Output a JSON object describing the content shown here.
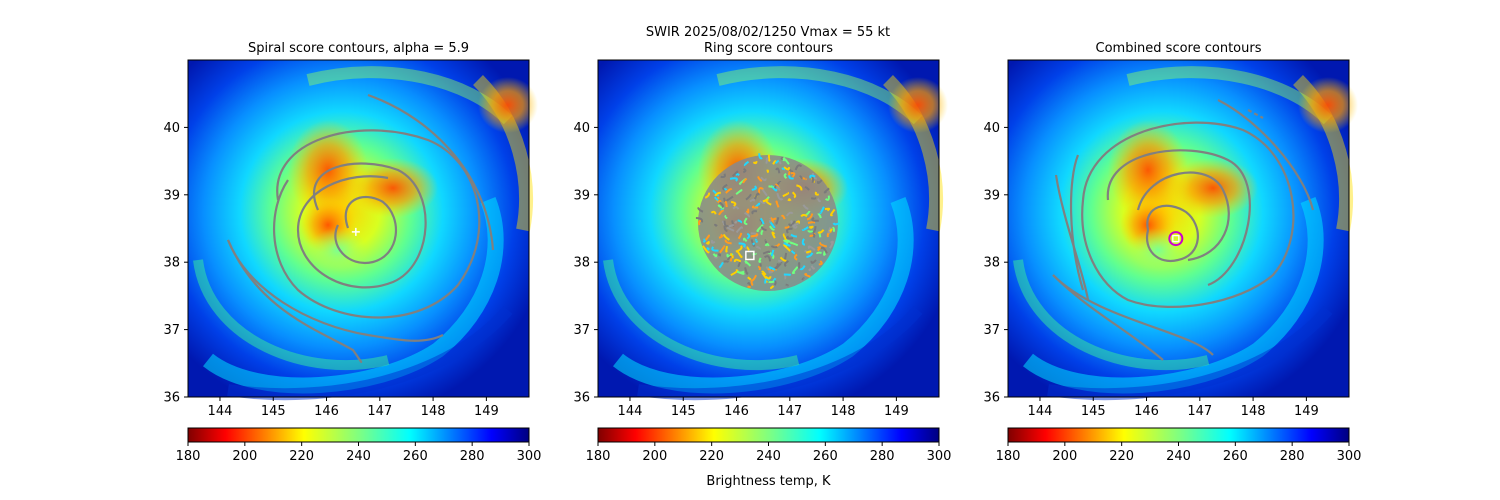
{
  "figure": {
    "suptitle_line1": "SWIR  2025/08/02/1250    Vmax = 55 kt",
    "colorbar_label": "Brightness temp, K"
  },
  "chart_data": [
    {
      "type": "heatmap",
      "title": "Spiral score contours, alpha =  5.9",
      "x_ticks": [
        144,
        145,
        146,
        147,
        148,
        149
      ],
      "y_ticks": [
        36,
        37,
        38,
        39,
        40
      ],
      "xlim": [
        143.4,
        149.8
      ],
      "ylim": [
        36.0,
        41.0
      ],
      "colorbar": {
        "colormap": "jet_r",
        "range": [
          180,
          300
        ],
        "ticks": [
          180,
          200,
          220,
          240,
          260,
          280,
          300
        ]
      },
      "marker": {
        "shape": "plus",
        "color": "#ffffff",
        "x": 146.55,
        "y": 38.45
      },
      "contour_color": "#808080"
    },
    {
      "type": "heatmap",
      "title": "Ring score contours",
      "x_ticks": [
        144,
        145,
        146,
        147,
        148,
        149
      ],
      "y_ticks": [
        36,
        37,
        38,
        39,
        40
      ],
      "xlim": [
        143.4,
        149.8
      ],
      "ylim": [
        36.0,
        41.0
      ],
      "colorbar": {
        "colormap": "jet_r",
        "range": [
          180,
          300
        ],
        "ticks": [
          180,
          200,
          220,
          240,
          260,
          280,
          300
        ]
      },
      "marker": {
        "shape": "square",
        "color": "#ffffff",
        "x": 146.25,
        "y": 38.1
      },
      "contour_color": "#808080"
    },
    {
      "type": "heatmap",
      "title": "Combined score contours",
      "x_ticks": [
        144,
        145,
        146,
        147,
        148,
        149
      ],
      "y_ticks": [
        36,
        37,
        38,
        39,
        40
      ],
      "xlim": [
        143.4,
        149.8
      ],
      "ylim": [
        36.0,
        41.0
      ],
      "colorbar": {
        "colormap": "jet_r",
        "range": [
          180,
          300
        ],
        "ticks": [
          180,
          200,
          220,
          240,
          260,
          280,
          300
        ]
      },
      "marker": {
        "shape": "circle-square",
        "color": "#cc00cc",
        "x": 146.55,
        "y": 38.35
      },
      "contour_color": "#808080"
    }
  ]
}
